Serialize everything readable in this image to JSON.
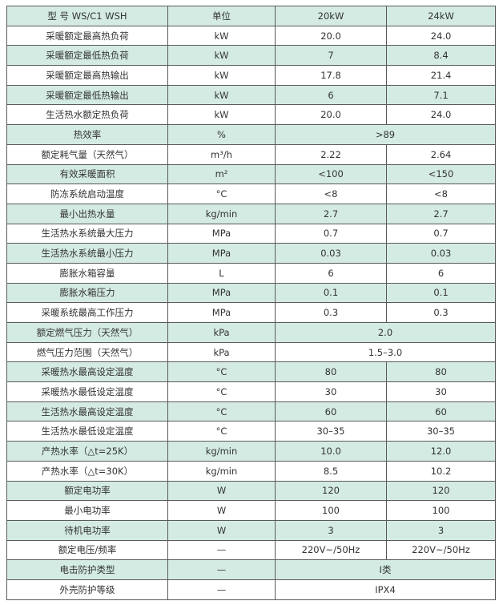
{
  "shade_color": "#d4ebe4",
  "header": [
    "型 号 WS/C1 WSH",
    "单位",
    "20kW",
    "24kW"
  ],
  "rows": [
    [
      "采暖额定最高热负荷",
      "kW",
      "20.0",
      "24.0"
    ],
    [
      "采暖额定最低热负荷",
      "kW",
      "7",
      "8.4"
    ],
    [
      "采暖额定最高热输出",
      "kW",
      "17.8",
      "21.4"
    ],
    [
      "采暖额定最低热输出",
      "kW",
      "6",
      "7.1"
    ],
    [
      "生活热水额定热负荷",
      "kW",
      "20.0",
      "24.0"
    ],
    [
      "热效率",
      "%",
      ">89"
    ],
    [
      "额定耗气量（天然气）",
      "m³/h",
      "2.22",
      "2.64"
    ],
    [
      "有效采暖面积",
      "m²",
      "<100",
      "<150"
    ],
    [
      "防冻系统启动温度",
      "°C",
      "<8",
      "<8"
    ],
    [
      "最小出热水量",
      "kg/min",
      "2.7",
      "2.7"
    ],
    [
      "生活热水系统最大压力",
      "MPa",
      "0.7",
      "0.7"
    ],
    [
      "生活热水系统最小压力",
      "MPa",
      "0.03",
      "0.03"
    ],
    [
      "膨胀水箱容量",
      "L",
      "6",
      "6"
    ],
    [
      "膨胀水箱压力",
      "MPa",
      "0.1",
      "0.1"
    ],
    [
      "采暖系统最高工作压力",
      "MPa",
      "0.3",
      "0.3"
    ],
    [
      "额定燃气压力（天然气）",
      "kPa",
      "2.0"
    ],
    [
      "燃气压力范围（天然气）",
      "kPa",
      "1.5–3.0"
    ],
    [
      "采暖热水最高设定温度",
      "°C",
      "80",
      "80"
    ],
    [
      "采暖热水最低设定温度",
      "°C",
      "30",
      "30"
    ],
    [
      "生活热水最高设定温度",
      "°C",
      "60",
      "60"
    ],
    [
      "生活热水最低设定温度",
      "°C",
      "30–35",
      "30–35"
    ],
    [
      "产热水率（△t=25K）",
      "kg/min",
      "10.0",
      "12.0"
    ],
    [
      "产热水率（△t=30K）",
      "kg/min",
      "8.5",
      "10.2"
    ],
    [
      "额定电功率",
      "W",
      "120",
      "120"
    ],
    [
      "最小电功率",
      "W",
      "100",
      "100"
    ],
    [
      "待机电功率",
      "W",
      "3",
      "3"
    ],
    [
      "额定电压/频率",
      "—",
      "220V~/50Hz",
      "220V~/50Hz"
    ],
    [
      "电击防护类型",
      "—",
      "I类"
    ],
    [
      "外壳防护等级",
      "—",
      "IPX4"
    ]
  ]
}
